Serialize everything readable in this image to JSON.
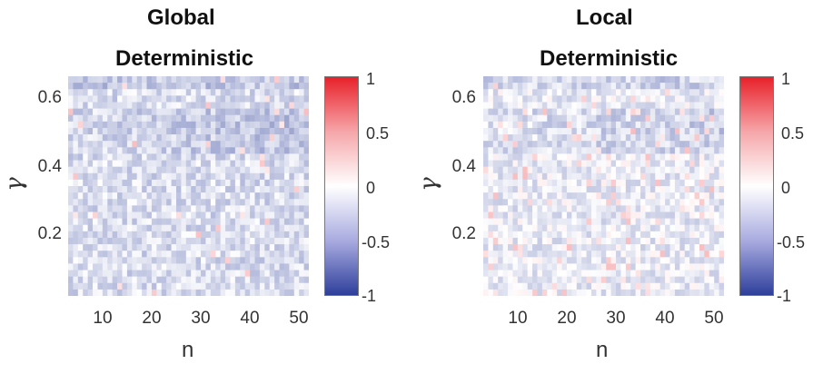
{
  "chart_data": [
    {
      "type": "heatmap",
      "title": "Global",
      "subtitle": "Deterministic",
      "xlabel": "n",
      "ylabel": "γ",
      "xticks": [
        "10",
        "20",
        "30",
        "40",
        "50"
      ],
      "yticks": [
        "0.6",
        "0.4",
        "0.2"
      ],
      "xlim": [
        3,
        52
      ],
      "ylim": [
        0.02,
        0.66
      ],
      "colorbar": {
        "ticks": [
          "1",
          "0.5",
          "0",
          "-0.5",
          "-1"
        ],
        "range": [
          -1,
          1
        ]
      },
      "grid_cols": 49,
      "grid_rows": 34,
      "mean_value": -0.18,
      "band_rows_value": -0.32
    },
    {
      "type": "heatmap",
      "title": "Local",
      "subtitle": "Deterministic",
      "xlabel": "n",
      "ylabel": "γ",
      "xticks": [
        "10",
        "20",
        "30",
        "40",
        "50"
      ],
      "yticks": [
        "0.6",
        "0.4",
        "0.2"
      ],
      "xlim": [
        3,
        52
      ],
      "ylim": [
        0.02,
        0.66
      ],
      "colorbar": {
        "ticks": [
          "1",
          "0.5",
          "0",
          "-0.5",
          "-1"
        ],
        "range": [
          -1,
          1
        ]
      },
      "grid_cols": 49,
      "grid_rows": 34,
      "mean_value": -0.1,
      "band_rows_value": -0.25
    }
  ],
  "colors": {
    "pos": "#e8212a",
    "mid": "#ffffff",
    "neg": "#2e3f9b"
  }
}
